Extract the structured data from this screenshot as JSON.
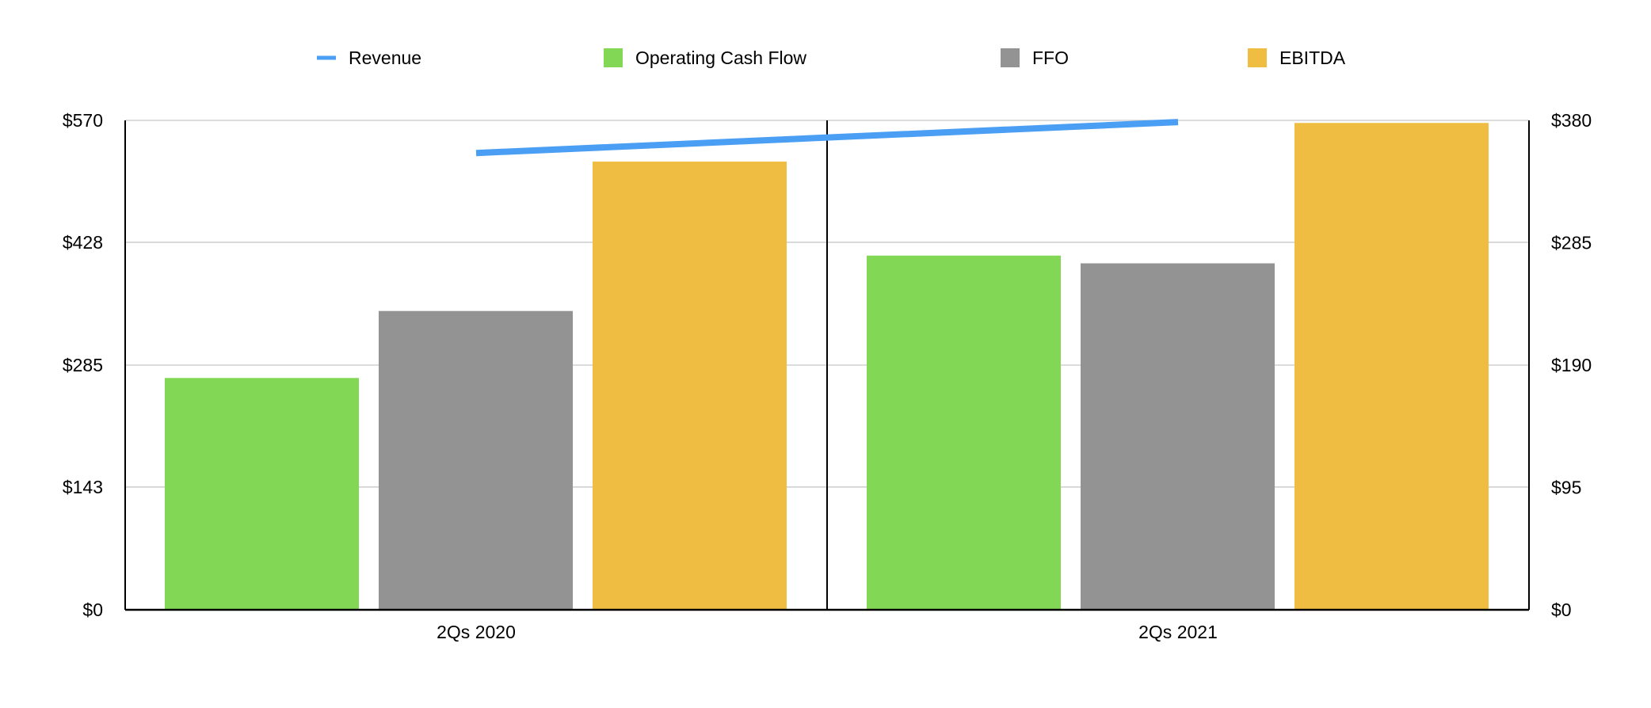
{
  "chart_data": {
    "type": "bar",
    "categories": [
      "2Qs 2020",
      "2Qs 2021"
    ],
    "series": [
      {
        "name": "Revenue",
        "type": "line",
        "axis": "left",
        "values": [
          532,
          568
        ],
        "color": "#4a9ff5"
      },
      {
        "name": "Operating Cash Flow",
        "type": "bar",
        "axis": "right",
        "values": [
          180,
          275
        ],
        "color": "#82d755"
      },
      {
        "name": "FFO",
        "type": "bar",
        "axis": "right",
        "values": [
          232,
          269
        ],
        "color": "#939393"
      },
      {
        "name": "EBITDA",
        "type": "bar",
        "axis": "right",
        "values": [
          348,
          378
        ],
        "color": "#efbd41"
      }
    ],
    "y_left": {
      "min": 0,
      "max": 570,
      "ticks": [
        0,
        143,
        285,
        428,
        570
      ],
      "tick_labels": [
        "$0",
        "$143",
        "$285",
        "$428",
        "$570"
      ]
    },
    "y_right": {
      "min": 0,
      "max": 380,
      "ticks": [
        0,
        95,
        190,
        285,
        380
      ],
      "tick_labels": [
        "$0",
        "$95",
        "$190",
        "$285",
        "$380"
      ]
    },
    "grid": true,
    "legend_position": "top"
  }
}
